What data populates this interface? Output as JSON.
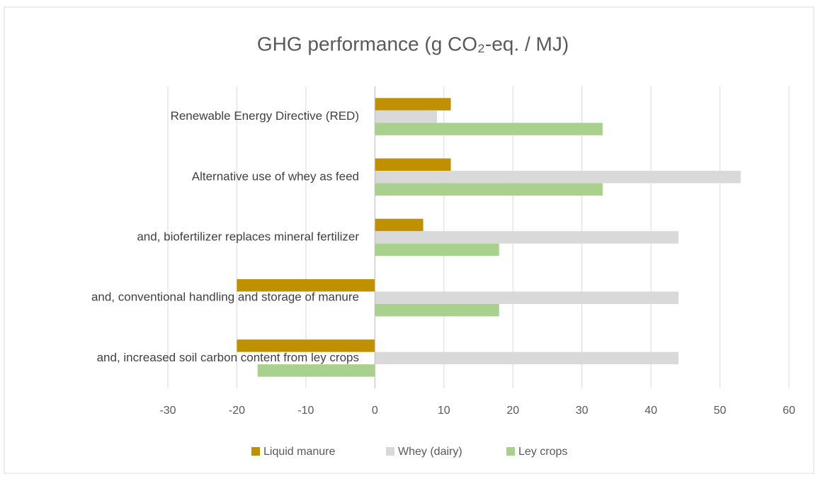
{
  "chart_data": {
    "type": "hbar",
    "title": "GHG performance (g CO₂-eq. / MJ)",
    "categories": [
      "Renewable Energy Directive (RED)",
      "Alternative use of whey as feed",
      "and, biofertilizer replaces mineral fertilizer",
      "and, conventional handling and storage of manure",
      "and, increased soil carbon content from ley crops"
    ],
    "series": [
      {
        "name": "Liquid manure",
        "color": "#bf9000",
        "values": [
          11,
          11,
          7,
          -20,
          -20
        ]
      },
      {
        "name": "Whey (dairy)",
        "color": "#d9d9d9",
        "values": [
          9,
          53,
          44,
          44,
          44
        ]
      },
      {
        "name": "Ley crops",
        "color": "#a9d18e",
        "values": [
          33,
          33,
          18,
          18,
          -17
        ]
      }
    ],
    "xlim": [
      -30,
      60
    ],
    "xticks": [
      -30,
      -20,
      -10,
      0,
      10,
      20,
      30,
      40,
      50,
      60
    ],
    "grid": true,
    "legend": "bottom"
  }
}
